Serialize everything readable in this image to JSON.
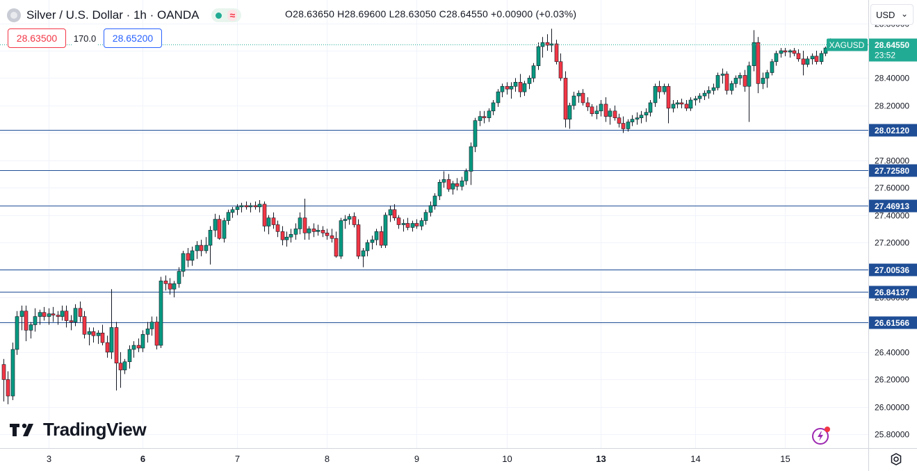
{
  "header": {
    "symbol_title": "Silver / U.S. Dollar · 1h · OANDA",
    "ohlc": "O28.63650 H28.69600 L28.63050 C28.64550 +0.00900 (+0.03%)",
    "status_dot_color": "#22ab94",
    "indicator_icon": "wave-icon"
  },
  "quote": {
    "bid": "28.63500",
    "spread": "170.0",
    "ask": "28.65200"
  },
  "currency_selector": {
    "label": "USD"
  },
  "branding": {
    "logo_text": "TradingView"
  },
  "colors": {
    "up": "#089981",
    "down": "#f23645",
    "level_line": "#1f4e96",
    "level_label_bg": "#1f4e96",
    "last_price_bg": "#22ab94",
    "grid": "#f0f3fa"
  },
  "chart_data": {
    "type": "candlestick",
    "symbol": "XAGUSD",
    "timeframe": "1h",
    "y_axis": {
      "ticks": [
        "25.80000",
        "26.00000",
        "26.20000",
        "26.40000",
        "26.60000",
        "26.80000",
        "27.00000",
        "27.20000",
        "27.40000",
        "27.60000",
        "27.80000",
        "28.00000",
        "28.20000",
        "28.40000",
        "28.60000",
        "28.80000"
      ],
      "ylim": [
        25.7,
        28.97
      ]
    },
    "x_axis": {
      "ticks": [
        "3",
        "6",
        "7",
        "8",
        "9",
        "10",
        "13",
        "14",
        "15"
      ],
      "bold_ticks": [
        "6",
        "13"
      ]
    },
    "last_price": {
      "symbol_label": "XAGUSD",
      "value": "28.64550",
      "countdown": "23:52"
    },
    "horizontal_levels": [
      "28.02120",
      "27.72580",
      "27.46913",
      "27.00536",
      "26.84137",
      "26.61566"
    ],
    "ohlc_hourly": [
      [
        26.31,
        26.35,
        26.04,
        26.2
      ],
      [
        26.2,
        26.26,
        26.02,
        26.08
      ],
      [
        26.08,
        26.47,
        26.05,
        26.42
      ],
      [
        26.42,
        26.7,
        26.38,
        26.66
      ],
      [
        26.66,
        26.74,
        26.56,
        26.7
      ],
      [
        26.7,
        26.74,
        26.48,
        26.56
      ],
      [
        26.56,
        26.62,
        26.5,
        26.6
      ],
      [
        26.6,
        26.72,
        26.55,
        26.66
      ],
      [
        26.66,
        26.71,
        26.6,
        26.69
      ],
      [
        26.69,
        26.73,
        26.63,
        26.66
      ],
      [
        26.66,
        26.72,
        26.6,
        26.68
      ],
      [
        26.68,
        26.73,
        26.62,
        26.67
      ],
      [
        26.67,
        26.7,
        26.6,
        26.66
      ],
      [
        26.66,
        26.74,
        26.63,
        26.7
      ],
      [
        26.7,
        26.74,
        26.58,
        26.63
      ],
      [
        26.63,
        26.67,
        26.56,
        26.62
      ],
      [
        26.62,
        26.75,
        26.59,
        26.72
      ],
      [
        26.72,
        26.77,
        26.62,
        26.66
      ],
      [
        26.66,
        26.7,
        26.5,
        26.53
      ],
      [
        26.53,
        26.58,
        26.45,
        26.55
      ],
      [
        26.55,
        26.58,
        26.47,
        26.52
      ],
      [
        26.52,
        26.56,
        26.46,
        26.54
      ],
      [
        26.54,
        26.6,
        26.45,
        26.47
      ],
      [
        26.47,
        26.52,
        26.36,
        26.4
      ],
      [
        26.4,
        26.86,
        26.35,
        26.58
      ],
      [
        26.58,
        26.62,
        26.12,
        26.32
      ],
      [
        26.32,
        26.4,
        26.14,
        26.27
      ],
      [
        26.27,
        26.35,
        26.24,
        26.33
      ],
      [
        26.33,
        26.45,
        26.28,
        26.42
      ],
      [
        26.42,
        26.48,
        26.36,
        26.45
      ],
      [
        26.45,
        26.5,
        26.4,
        26.43
      ],
      [
        26.43,
        26.56,
        26.4,
        26.53
      ],
      [
        26.53,
        26.62,
        26.47,
        26.57
      ],
      [
        26.57,
        26.66,
        26.52,
        26.62
      ],
      [
        26.62,
        26.66,
        26.42,
        26.45
      ],
      [
        26.45,
        26.95,
        26.43,
        26.92
      ],
      [
        26.92,
        26.96,
        26.85,
        26.9
      ],
      [
        26.9,
        26.94,
        26.82,
        26.86
      ],
      [
        26.86,
        26.92,
        26.8,
        26.9
      ],
      [
        26.9,
        27.02,
        26.87,
        26.99
      ],
      [
        26.99,
        27.14,
        26.95,
        27.12
      ],
      [
        27.12,
        27.16,
        27.02,
        27.07
      ],
      [
        27.07,
        27.17,
        27.03,
        27.14
      ],
      [
        27.14,
        27.21,
        27.08,
        27.18
      ],
      [
        27.18,
        27.22,
        27.1,
        27.14
      ],
      [
        27.14,
        27.24,
        27.12,
        27.18
      ],
      [
        27.18,
        27.32,
        27.04,
        27.29
      ],
      [
        27.29,
        27.41,
        27.24,
        27.37
      ],
      [
        27.37,
        27.4,
        27.22,
        27.23
      ],
      [
        27.23,
        27.38,
        27.2,
        27.36
      ],
      [
        27.36,
        27.44,
        27.33,
        27.42
      ],
      [
        27.42,
        27.46,
        27.38,
        27.44
      ],
      [
        27.44,
        27.48,
        27.4,
        27.46
      ],
      [
        27.46,
        27.49,
        27.42,
        27.47
      ],
      [
        27.47,
        27.5,
        27.44,
        27.46
      ],
      [
        27.46,
        27.49,
        27.42,
        27.47
      ],
      [
        27.47,
        27.5,
        27.44,
        27.46
      ],
      [
        27.46,
        27.51,
        27.42,
        27.48
      ],
      [
        27.48,
        27.5,
        27.28,
        27.32
      ],
      [
        27.32,
        27.4,
        27.26,
        27.38
      ],
      [
        27.38,
        27.42,
        27.3,
        27.33
      ],
      [
        27.33,
        27.36,
        27.24,
        27.28
      ],
      [
        27.28,
        27.32,
        27.18,
        27.22
      ],
      [
        27.22,
        27.28,
        27.17,
        27.24
      ],
      [
        27.24,
        27.3,
        27.2,
        27.26
      ],
      [
        27.26,
        27.34,
        27.22,
        27.3
      ],
      [
        27.3,
        27.42,
        27.26,
        27.38
      ],
      [
        27.38,
        27.52,
        27.22,
        27.27
      ],
      [
        27.27,
        27.32,
        27.22,
        27.3
      ],
      [
        27.3,
        27.34,
        27.24,
        27.28
      ],
      [
        27.28,
        27.33,
        27.25,
        27.29
      ],
      [
        27.29,
        27.32,
        27.24,
        27.27
      ],
      [
        27.27,
        27.3,
        27.22,
        27.25
      ],
      [
        27.25,
        27.3,
        27.2,
        27.23
      ],
      [
        27.23,
        27.28,
        27.09,
        27.1
      ],
      [
        27.1,
        27.38,
        27.08,
        27.36
      ],
      [
        27.36,
        27.4,
        27.3,
        27.37
      ],
      [
        27.37,
        27.41,
        27.33,
        27.39
      ],
      [
        27.39,
        27.42,
        27.31,
        27.33
      ],
      [
        27.33,
        27.37,
        27.08,
        27.1
      ],
      [
        27.1,
        27.16,
        27.02,
        27.14
      ],
      [
        27.14,
        27.22,
        27.1,
        27.2
      ],
      [
        27.2,
        27.25,
        27.15,
        27.22
      ],
      [
        27.22,
        27.3,
        27.18,
        27.28
      ],
      [
        27.28,
        27.32,
        27.16,
        27.18
      ],
      [
        27.18,
        27.42,
        27.16,
        27.4
      ],
      [
        27.4,
        27.47,
        27.35,
        27.44
      ],
      [
        27.44,
        27.48,
        27.36,
        27.38
      ],
      [
        27.38,
        27.4,
        27.3,
        27.33
      ],
      [
        27.33,
        27.37,
        27.28,
        27.34
      ],
      [
        27.34,
        27.38,
        27.29,
        27.31
      ],
      [
        27.31,
        27.36,
        27.28,
        27.34
      ],
      [
        27.34,
        27.37,
        27.3,
        27.32
      ],
      [
        27.32,
        27.38,
        27.29,
        27.36
      ],
      [
        27.36,
        27.44,
        27.33,
        27.42
      ],
      [
        27.42,
        27.5,
        27.39,
        27.47
      ],
      [
        27.47,
        27.56,
        27.44,
        27.54
      ],
      [
        27.54,
        27.66,
        27.51,
        27.64
      ],
      [
        27.64,
        27.72,
        27.6,
        27.66
      ],
      [
        27.66,
        27.7,
        27.57,
        27.59
      ],
      [
        27.59,
        27.65,
        27.55,
        27.63
      ],
      [
        27.63,
        27.67,
        27.58,
        27.61
      ],
      [
        27.61,
        27.68,
        27.58,
        27.65
      ],
      [
        27.65,
        27.74,
        27.62,
        27.72
      ],
      [
        27.72,
        27.93,
        27.62,
        27.9
      ],
      [
        27.9,
        28.11,
        27.86,
        28.09
      ],
      [
        28.09,
        28.16,
        28.05,
        28.12
      ],
      [
        28.12,
        28.16,
        28.07,
        28.11
      ],
      [
        28.11,
        28.18,
        28.08,
        28.16
      ],
      [
        28.16,
        28.24,
        28.13,
        28.22
      ],
      [
        28.22,
        28.32,
        28.19,
        28.3
      ],
      [
        28.3,
        28.36,
        28.26,
        28.34
      ],
      [
        28.34,
        28.37,
        28.28,
        28.32
      ],
      [
        28.32,
        28.37,
        28.25,
        28.34
      ],
      [
        28.34,
        28.4,
        28.3,
        28.37
      ],
      [
        28.37,
        28.43,
        28.26,
        28.3
      ],
      [
        28.3,
        28.38,
        28.27,
        28.36
      ],
      [
        28.36,
        28.42,
        28.32,
        28.4
      ],
      [
        28.4,
        28.51,
        28.37,
        28.49
      ],
      [
        28.49,
        28.66,
        28.46,
        28.63
      ],
      [
        28.63,
        28.7,
        28.55,
        28.66
      ],
      [
        28.66,
        28.72,
        28.6,
        28.64
      ],
      [
        28.64,
        28.76,
        28.59,
        28.65
      ],
      [
        28.65,
        28.68,
        28.5,
        28.52
      ],
      [
        28.52,
        28.58,
        28.38,
        28.4
      ],
      [
        28.4,
        28.45,
        28.04,
        28.1
      ],
      [
        28.1,
        28.22,
        28.03,
        28.2
      ],
      [
        28.2,
        28.3,
        28.17,
        28.27
      ],
      [
        28.27,
        28.31,
        28.22,
        28.29
      ],
      [
        28.29,
        28.32,
        28.2,
        28.22
      ],
      [
        28.22,
        28.26,
        28.16,
        28.19
      ],
      [
        28.19,
        28.21,
        28.12,
        28.14
      ],
      [
        28.14,
        28.2,
        28.1,
        28.16
      ],
      [
        28.16,
        28.24,
        28.12,
        28.21
      ],
      [
        28.21,
        28.26,
        28.08,
        28.12
      ],
      [
        28.12,
        28.18,
        28.06,
        28.16
      ],
      [
        28.16,
        28.2,
        28.09,
        28.11
      ],
      [
        28.11,
        28.14,
        28.04,
        28.07
      ],
      [
        28.07,
        28.12,
        28.0,
        28.03
      ],
      [
        28.03,
        28.1,
        28.01,
        28.08
      ],
      [
        28.08,
        28.13,
        28.05,
        28.1
      ],
      [
        28.1,
        28.15,
        28.06,
        28.11
      ],
      [
        28.11,
        28.16,
        28.07,
        28.13
      ],
      [
        28.13,
        28.18,
        28.08,
        28.15
      ],
      [
        28.15,
        28.24,
        28.12,
        28.22
      ],
      [
        28.22,
        28.36,
        28.19,
        28.34
      ],
      [
        28.34,
        28.38,
        28.25,
        28.3
      ],
      [
        28.3,
        28.36,
        28.28,
        28.34
      ],
      [
        28.34,
        28.36,
        28.07,
        28.18
      ],
      [
        28.18,
        28.24,
        28.15,
        28.21
      ],
      [
        28.21,
        28.24,
        28.18,
        28.22
      ],
      [
        28.22,
        28.25,
        28.18,
        28.21
      ],
      [
        28.21,
        28.24,
        28.16,
        28.18
      ],
      [
        28.18,
        28.26,
        28.16,
        28.24
      ],
      [
        28.24,
        28.27,
        28.2,
        28.25
      ],
      [
        28.25,
        28.29,
        28.22,
        28.27
      ],
      [
        28.27,
        28.31,
        28.24,
        28.29
      ],
      [
        28.29,
        28.34,
        28.25,
        28.31
      ],
      [
        28.31,
        28.36,
        28.28,
        28.33
      ],
      [
        28.33,
        28.44,
        28.31,
        28.42
      ],
      [
        28.42,
        28.47,
        28.36,
        28.43
      ],
      [
        28.43,
        28.45,
        28.28,
        28.31
      ],
      [
        28.31,
        28.38,
        28.28,
        28.36
      ],
      [
        28.36,
        28.42,
        28.33,
        28.4
      ],
      [
        28.4,
        28.44,
        28.35,
        28.42
      ],
      [
        28.42,
        28.46,
        28.3,
        28.34
      ],
      [
        28.34,
        28.52,
        28.08,
        28.49
      ],
      [
        28.49,
        28.75,
        28.45,
        28.66
      ],
      [
        28.66,
        28.7,
        28.29,
        28.36
      ],
      [
        28.36,
        28.44,
        28.32,
        28.4
      ],
      [
        28.4,
        28.46,
        28.33,
        28.44
      ],
      [
        28.44,
        28.54,
        28.42,
        28.52
      ],
      [
        28.52,
        28.6,
        28.49,
        28.58
      ],
      [
        28.58,
        28.62,
        28.55,
        28.6
      ],
      [
        28.6,
        28.62,
        28.56,
        28.59
      ],
      [
        28.59,
        28.61,
        28.55,
        28.6
      ],
      [
        28.6,
        28.62,
        28.56,
        28.58
      ],
      [
        28.58,
        28.61,
        28.52,
        28.54
      ],
      [
        28.54,
        28.6,
        28.42,
        28.5
      ],
      [
        28.5,
        28.56,
        28.48,
        28.54
      ],
      [
        28.54,
        28.58,
        28.5,
        28.56
      ],
      [
        28.56,
        28.6,
        28.5,
        28.52
      ],
      [
        28.52,
        28.6,
        28.5,
        28.58
      ],
      [
        28.58,
        28.63,
        28.56,
        28.62
      ],
      [
        28.63,
        28.69,
        28.63,
        28.64
      ]
    ]
  }
}
